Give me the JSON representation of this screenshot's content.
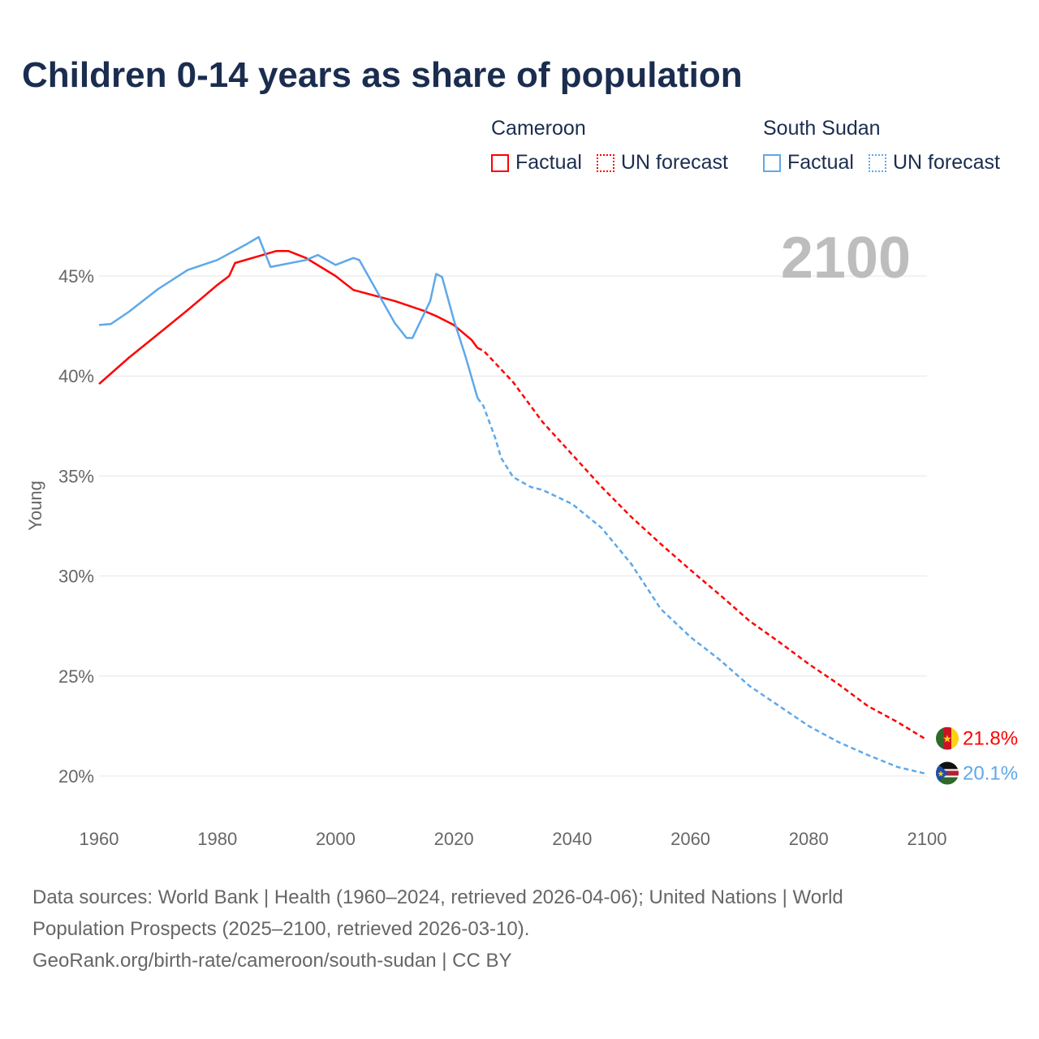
{
  "chart_data": {
    "type": "line",
    "title": "Children 0-14 years as share of population",
    "xlabel": "",
    "ylabel": "Young",
    "xlim": [
      1960,
      2100
    ],
    "ylim": [
      18,
      47.5
    ],
    "x_ticks": [
      "1960",
      "1980",
      "2000",
      "2020",
      "2040",
      "2060",
      "2080",
      "2100"
    ],
    "y_ticks": [
      "20%",
      "25%",
      "30%",
      "35%",
      "40%",
      "45%"
    ],
    "y_tick_values": [
      20,
      25,
      30,
      35,
      40,
      45
    ],
    "x_tick_values": [
      1960,
      1980,
      2000,
      2020,
      2040,
      2060,
      2080,
      2100
    ],
    "grid": true,
    "year_overlay": "2100",
    "legend": {
      "placement": "top-right",
      "groups": [
        {
          "country": "Cameroon",
          "factual": "Factual",
          "forecast": "UN forecast",
          "color": "#ff0000"
        },
        {
          "country": "South Sudan",
          "factual": "Factual",
          "forecast": "UN forecast",
          "color": "#5ea8ea"
        }
      ]
    },
    "series": [
      {
        "name": "Cameroon",
        "color": "#ff0000",
        "end_label": "21.8%",
        "factual": {
          "x": [
            1960,
            1965,
            1970,
            1975,
            1980,
            1982,
            1983,
            1990,
            1992,
            1995,
            2000,
            2003,
            2010,
            2015,
            2017,
            2020,
            2023,
            2024
          ],
          "y": [
            39.6,
            40.9,
            42.1,
            43.3,
            44.55,
            45.0,
            45.65,
            46.25,
            46.25,
            45.9,
            45.0,
            44.3,
            43.75,
            43.25,
            43.0,
            42.55,
            41.8,
            41.4
          ]
        },
        "forecast": {
          "x": [
            2024,
            2025,
            2030,
            2035,
            2040,
            2045,
            2050,
            2055,
            2060,
            2065,
            2070,
            2075,
            2080,
            2085,
            2090,
            2095,
            2100
          ],
          "y": [
            41.4,
            41.27,
            39.7,
            37.7,
            36.07,
            34.45,
            32.95,
            31.6,
            30.3,
            29.05,
            27.75,
            26.7,
            25.6,
            24.6,
            23.5,
            22.7,
            21.8
          ]
        }
      },
      {
        "name": "South Sudan",
        "color": "#5ea8ea",
        "end_label": "20.1%",
        "factual": {
          "x": [
            1960,
            1962,
            1965,
            1970,
            1975,
            1980,
            1985,
            1987,
            1989,
            1995,
            1997,
            2000,
            2003,
            2004,
            2010,
            2012,
            2013,
            2016,
            2017,
            2018,
            2020,
            2022,
            2024
          ],
          "y": [
            42.55,
            42.6,
            43.2,
            44.35,
            45.3,
            45.8,
            46.6,
            46.95,
            45.45,
            45.8,
            46.05,
            45.55,
            45.9,
            45.8,
            42.65,
            41.9,
            41.9,
            43.75,
            45.1,
            44.95,
            42.8,
            40.95,
            38.9
          ]
        },
        "forecast": {
          "x": [
            2024,
            2025,
            2027,
            2028,
            2030,
            2033,
            2035,
            2040,
            2045,
            2050,
            2055,
            2060,
            2065,
            2070,
            2075,
            2080,
            2085,
            2090,
            2095,
            2100
          ],
          "y": [
            38.9,
            38.5,
            36.9,
            35.9,
            34.95,
            34.45,
            34.3,
            33.6,
            32.4,
            30.6,
            28.35,
            26.95,
            25.8,
            24.5,
            23.5,
            22.5,
            21.7,
            21.05,
            20.45,
            20.1
          ]
        }
      }
    ]
  },
  "footer": {
    "line1": "Data sources: World Bank | Health (1960–2024, retrieved 2026-04-06); United Nations | World",
    "line2": "Population Prospects (2025–2100, retrieved 2026-03-10).",
    "line3": "GeoRank.org/birth-rate/cameroon/south-sudan | CC BY"
  }
}
